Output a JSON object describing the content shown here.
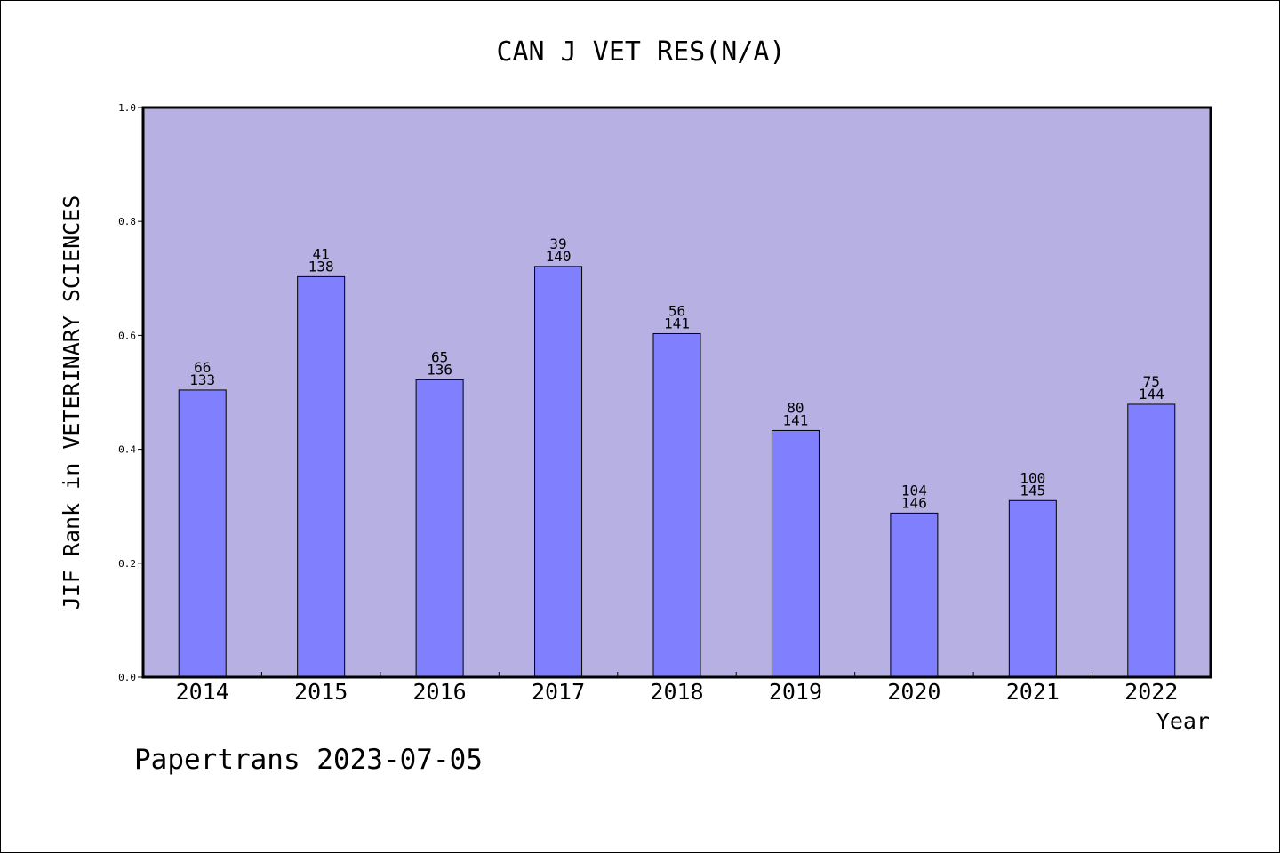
{
  "chart_data": {
    "type": "bar",
    "title": "CAN J VET RES(N/A)",
    "xlabel": "Year",
    "ylabel": "JIF Rank in VETERINARY SCIENCES",
    "ylim": [
      0,
      1.0
    ],
    "yticks": [
      "0.0",
      "0.2",
      "0.4",
      "0.6",
      "0.8",
      "1.0"
    ],
    "categories": [
      "2014",
      "2015",
      "2016",
      "2017",
      "2018",
      "2019",
      "2020",
      "2021",
      "2022"
    ],
    "values": [
      0.504,
      0.703,
      0.522,
      0.721,
      0.603,
      0.433,
      0.288,
      0.31,
      0.479
    ],
    "labels_top": [
      "66",
      "41",
      "65",
      "39",
      "56",
      "80",
      "104",
      "100",
      "75"
    ],
    "labels_bottom": [
      "133",
      "138",
      "136",
      "140",
      "141",
      "141",
      "146",
      "145",
      "144"
    ],
    "grid": false,
    "legend": "none"
  },
  "footer": "Papertrans 2023-07-05",
  "colors": {
    "plot_background": "#b6b0e3",
    "bar_fill": "#8080ff",
    "bar_stroke": "#000000"
  }
}
